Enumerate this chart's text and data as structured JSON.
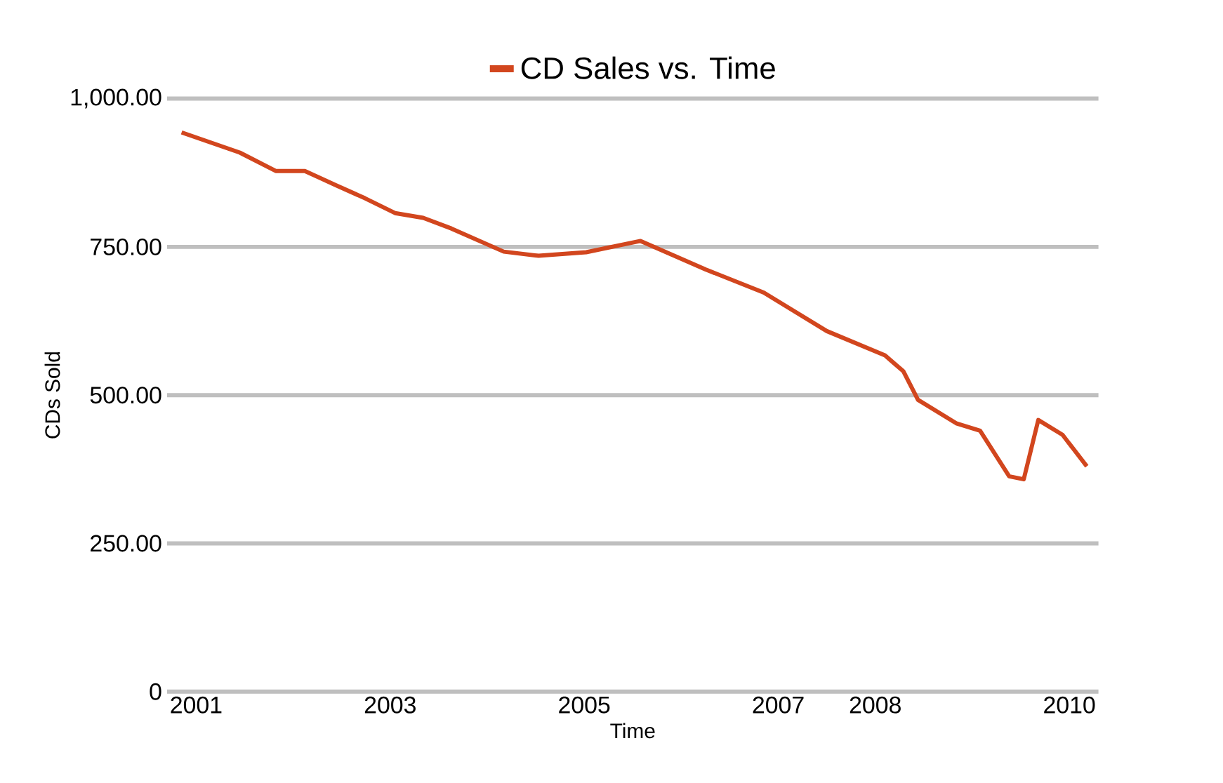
{
  "chart_data": {
    "type": "line",
    "xlabel": "Time",
    "ylabel": "CDs Sold",
    "series": [
      {
        "name": "CD Sales vs. Time",
        "color": "#d2461e",
        "x": [
          2000.85,
          2001.45,
          2001.82,
          2002.12,
          2002.44,
          2002.74,
          2003.05,
          2003.34,
          2003.63,
          2004.17,
          2004.53,
          2005.02,
          2005.58,
          2006.25,
          2006.85,
          2007.5,
          2008.1,
          2008.29,
          2008.44,
          2008.84,
          2009.08,
          2009.38,
          2009.53,
          2009.68,
          2009.93,
          2010.18
        ],
        "values": [
          943,
          909,
          878,
          878,
          854,
          832,
          807,
          799,
          781,
          742,
          735,
          741,
          760,
          712,
          673,
          608,
          567,
          540,
          492,
          452,
          440,
          363,
          358,
          458,
          433,
          380
        ]
      }
    ],
    "xlim": [
      2000.7,
      2010.3
    ],
    "xticks": [
      2001,
      2003,
      2005,
      2007,
      2008,
      2010
    ],
    "ylim": [
      0,
      1000
    ],
    "yticks": [
      {
        "value": 0,
        "label": "0"
      },
      {
        "value": 250,
        "label": "250.00"
      },
      {
        "value": 500,
        "label": "500.00"
      },
      {
        "value": 750,
        "label": "750.00"
      },
      {
        "value": 1000,
        "label": "1,000.00"
      }
    ],
    "grid": "y",
    "legend": "top"
  }
}
